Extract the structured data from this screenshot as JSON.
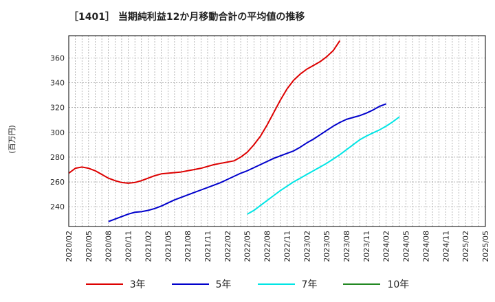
{
  "title": "［1401］ 当期純利益12か月移動合計の平均値の推移",
  "chart_data": {
    "type": "line",
    "title": "［1401］ 当期純利益12か月移動合計の平均値の推移",
    "ylabel": "(百万円)",
    "xlabel": "",
    "ylim": [
      224,
      378
    ],
    "yticks": [
      240,
      260,
      280,
      300,
      320,
      340,
      360
    ],
    "xticks": [
      "2020/02",
      "2020/05",
      "2020/08",
      "2020/11",
      "2021/02",
      "2021/05",
      "2021/08",
      "2021/11",
      "2022/02",
      "2022/05",
      "2022/08",
      "2022/11",
      "2023/02",
      "2023/05",
      "2023/08",
      "2023/11",
      "2024/02",
      "2024/05",
      "2024/08",
      "2024/11",
      "2025/02",
      "2025/05"
    ],
    "grid": true,
    "legend_position": "bottom",
    "series": [
      {
        "name": "3年",
        "color": "#dd0000",
        "start_index": 0,
        "values": [
          267,
          271,
          272,
          271,
          269,
          266,
          263,
          261,
          259.5,
          259,
          259.5,
          261,
          263,
          265,
          266.5,
          267,
          267.5,
          268,
          269,
          270,
          271,
          272.5,
          274,
          275,
          276,
          277,
          280,
          284,
          290,
          297,
          306,
          316,
          326,
          335,
          342,
          347,
          351,
          354,
          357,
          361,
          366,
          374
        ]
      },
      {
        "name": "5年",
        "color": "#0000cc",
        "start_index": 6,
        "values": [
          228,
          230,
          232,
          234,
          235.5,
          236,
          237,
          238.5,
          240.5,
          243,
          245.5,
          247.5,
          249.5,
          251.5,
          253.5,
          255.5,
          257.5,
          259.5,
          262,
          264.5,
          267,
          269,
          271.5,
          274,
          276.5,
          279,
          281,
          283,
          285,
          288,
          291.5,
          294.5,
          298,
          301.5,
          305,
          308,
          310.5,
          312,
          313.5,
          315.5,
          318,
          321,
          323
        ]
      },
      {
        "name": "7年",
        "color": "#00e5e5",
        "start_index": 27,
        "values": [
          234,
          237,
          241,
          245,
          249,
          253,
          256.5,
          260,
          263,
          266,
          269,
          272,
          275,
          278.5,
          282,
          286,
          290,
          294,
          297,
          299.5,
          302,
          305,
          308.5,
          312.5
        ]
      },
      {
        "name": "10年",
        "color": "#228822",
        "start_index": 0,
        "values": []
      }
    ]
  }
}
